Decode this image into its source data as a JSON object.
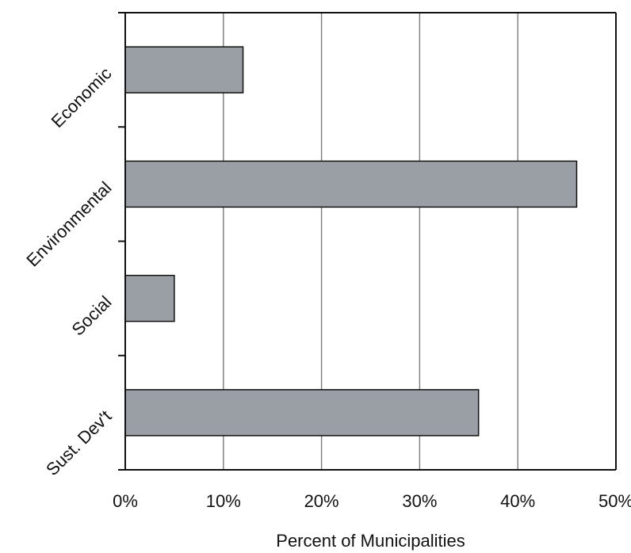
{
  "chart_data": {
    "type": "bar",
    "orientation": "horizontal",
    "categories": [
      "Economic",
      "Environmental",
      "Social",
      "Sust. Dev't"
    ],
    "values": [
      12,
      46,
      5,
      36
    ],
    "xlabel": "Percent of Municipalities",
    "ylabel": "",
    "xlim": [
      0,
      50
    ],
    "xticks": [
      0,
      10,
      20,
      30,
      40,
      50
    ],
    "xtick_labels": [
      "0%",
      "10%",
      "20%",
      "30%",
      "40%",
      "50%"
    ],
    "grid": "vertical",
    "legend": "none",
    "colors": {
      "bar_fill": "#9a9fa5",
      "bar_stroke": "#111111",
      "grid": "#7a7a7a",
      "axis": "#111111",
      "background": "#ffffff"
    }
  }
}
